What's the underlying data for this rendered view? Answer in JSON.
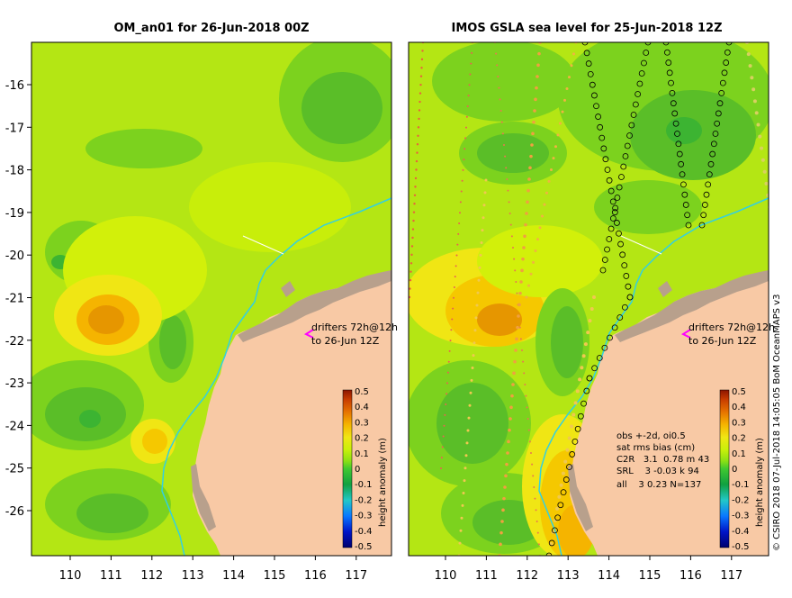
{
  "left_panel": {
    "title": "OM_an01 for 26-Jun-2018 00Z",
    "y_ticks": [
      "-16",
      "-17",
      "-18",
      "-19",
      "-20",
      "-21",
      "-22",
      "-23",
      "-24",
      "-25",
      "-26"
    ],
    "x_ticks": [
      "110",
      "111",
      "112",
      "113",
      "114",
      "115",
      "116",
      "117"
    ],
    "annotation_line1": "drifters 72h@12h",
    "annotation_line2": "to 26-Jun 12Z",
    "colorbar_label": "height anomaly (m)"
  },
  "right_panel": {
    "title": "IMOS GSLA sea level  for 25-Jun-2018 12Z",
    "x_ticks": [
      "110",
      "111",
      "112",
      "113",
      "114",
      "115",
      "116",
      "117"
    ],
    "annotation_line1": "drifters 72h@12h",
    "annotation_line2": "to 26-Jun 12Z",
    "colorbar_label": "height anomaly (m)",
    "stats": {
      "line1": "obs +-2d, oi0.5",
      "line2": "sat rms bias (cm)",
      "line3": "C2R   3.1  0.78 m 43",
      "line4": "SRL    3 -0.03 k 94",
      "line5": "all    3 0.23 N=137"
    }
  },
  "colorbar_ticks": [
    "0.5",
    "0.4",
    "0.3",
    "0.2",
    "0.1",
    "0",
    "-0.1",
    "-0.2",
    "-0.3",
    "-0.4",
    "-0.5"
  ],
  "side_credit": "© CSIRO 2018  07-Jul-2018 14:05:05 BoM OceanMAPS v3",
  "colors": {
    "land": "#f8c9a5",
    "coast_island": "#b8a08c",
    "bathy_contour": "#33d0e0",
    "drifter_arrow": "#ff00ff",
    "scale": [
      "#00006e",
      "#0014c8",
      "#0a78ff",
      "#22c8c8",
      "#10a040",
      "#40c830",
      "#8ce014",
      "#c8f00a",
      "#f0e614",
      "#f5b400",
      "#e67300",
      "#c83c00",
      "#8c1400"
    ]
  }
}
